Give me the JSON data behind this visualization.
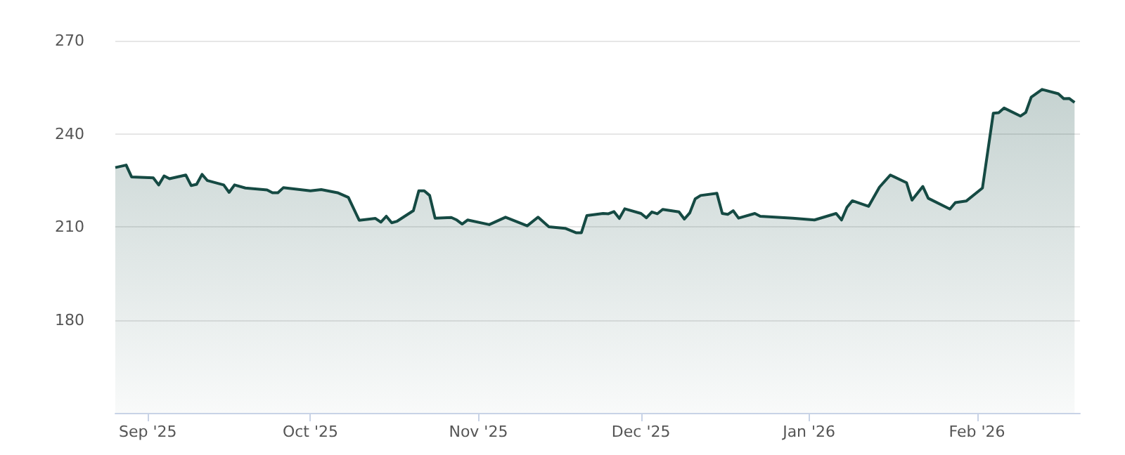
{
  "chart_data": {
    "type": "area",
    "x": [
      "2025-08-26",
      "2025-08-28",
      "2025-08-29",
      "2025-09-02",
      "2025-09-03",
      "2025-09-04",
      "2025-09-05",
      "2025-09-08",
      "2025-09-09",
      "2025-09-10",
      "2025-09-11",
      "2025-09-12",
      "2025-09-15",
      "2025-09-16",
      "2025-09-17",
      "2025-09-19",
      "2025-09-23",
      "2025-09-24",
      "2025-09-25",
      "2025-09-26",
      "2025-10-01",
      "2025-10-03",
      "2025-10-06",
      "2025-10-08",
      "2025-10-10",
      "2025-10-13",
      "2025-10-14",
      "2025-10-15",
      "2025-10-16",
      "2025-10-17",
      "2025-10-20",
      "2025-10-21",
      "2025-10-22",
      "2025-10-23",
      "2025-10-24",
      "2025-10-27",
      "2025-10-28",
      "2025-10-29",
      "2025-10-30",
      "2025-11-03",
      "2025-11-06",
      "2025-11-10",
      "2025-11-12",
      "2025-11-14",
      "2025-11-17",
      "2025-11-19",
      "2025-11-20",
      "2025-11-21",
      "2025-11-24",
      "2025-11-25",
      "2025-11-26",
      "2025-11-27",
      "2025-11-28",
      "2025-12-01",
      "2025-12-02",
      "2025-12-03",
      "2025-12-04",
      "2025-12-05",
      "2025-12-08",
      "2025-12-09",
      "2025-12-10",
      "2025-12-11",
      "2025-12-12",
      "2025-12-15",
      "2025-12-16",
      "2025-12-17",
      "2025-12-18",
      "2025-12-19",
      "2025-12-22",
      "2025-12-23",
      "2025-12-29",
      "2026-01-02",
      "2026-01-06",
      "2026-01-07",
      "2026-01-08",
      "2026-01-09",
      "2026-01-12",
      "2026-01-14",
      "2026-01-16",
      "2026-01-19",
      "2026-01-20",
      "2026-01-22",
      "2026-01-23",
      "2026-01-27",
      "2026-01-28",
      "2026-01-30",
      "2026-02-02",
      "2026-02-04",
      "2026-02-05",
      "2026-02-06",
      "2026-02-09",
      "2026-02-10",
      "2026-02-11",
      "2026-02-13",
      "2026-02-16",
      "2026-02-17",
      "2026-02-18",
      "2026-02-19"
    ],
    "series": [
      {
        "color": "#154a43",
        "values": [
          229.1,
          229.9,
          226.1,
          225.8,
          223.5,
          226.4,
          225.5,
          226.7,
          223.3,
          223.7,
          226.9,
          224.9,
          223.5,
          221.1,
          223.5,
          222.5,
          221.9,
          221.0,
          221.0,
          222.6,
          221.6,
          222.0,
          221.0,
          219.5,
          212.1,
          212.7,
          211.5,
          213.4,
          211.3,
          211.8,
          215.2,
          221.6,
          221.6,
          220.1,
          212.8,
          213.0,
          212.2,
          210.9,
          212.2,
          210.7,
          213.1,
          210.3,
          213.1,
          210.0,
          209.5,
          208.1,
          208.1,
          213.6,
          214.3,
          214.2,
          214.9,
          212.7,
          215.8,
          214.3,
          212.9,
          214.8,
          214.2,
          215.6,
          214.8,
          212.5,
          214.5,
          219.0,
          220.1,
          220.8,
          214.3,
          214.0,
          215.2,
          212.8,
          214.3,
          213.4,
          212.8,
          212.2,
          214.3,
          212.2,
          216.3,
          218.4,
          216.6,
          222.8,
          226.7,
          224.2,
          218.6,
          223.0,
          219.2,
          215.7,
          217.8,
          218.3,
          222.5,
          246.6,
          246.8,
          248.3,
          245.7,
          246.9,
          251.8,
          254.3,
          252.9,
          251.3,
          251.4,
          250.1
        ]
      }
    ],
    "xlim": [
      "2025-08-26",
      "2026-02-20"
    ],
    "xticks": [
      {
        "value": "2025-09-01",
        "label": "Sep '25"
      },
      {
        "value": "2025-10-01",
        "label": "Oct '25"
      },
      {
        "value": "2025-11-01",
        "label": "Nov '25"
      },
      {
        "value": "2025-12-01",
        "label": "Dec '25"
      },
      {
        "value": "2026-01-01",
        "label": "Jan '26"
      },
      {
        "value": "2026-02-01",
        "label": "Feb '26"
      }
    ],
    "ylim": [
      150,
      270
    ],
    "yticks": [
      180,
      210,
      240,
      270
    ],
    "grid": "y"
  }
}
